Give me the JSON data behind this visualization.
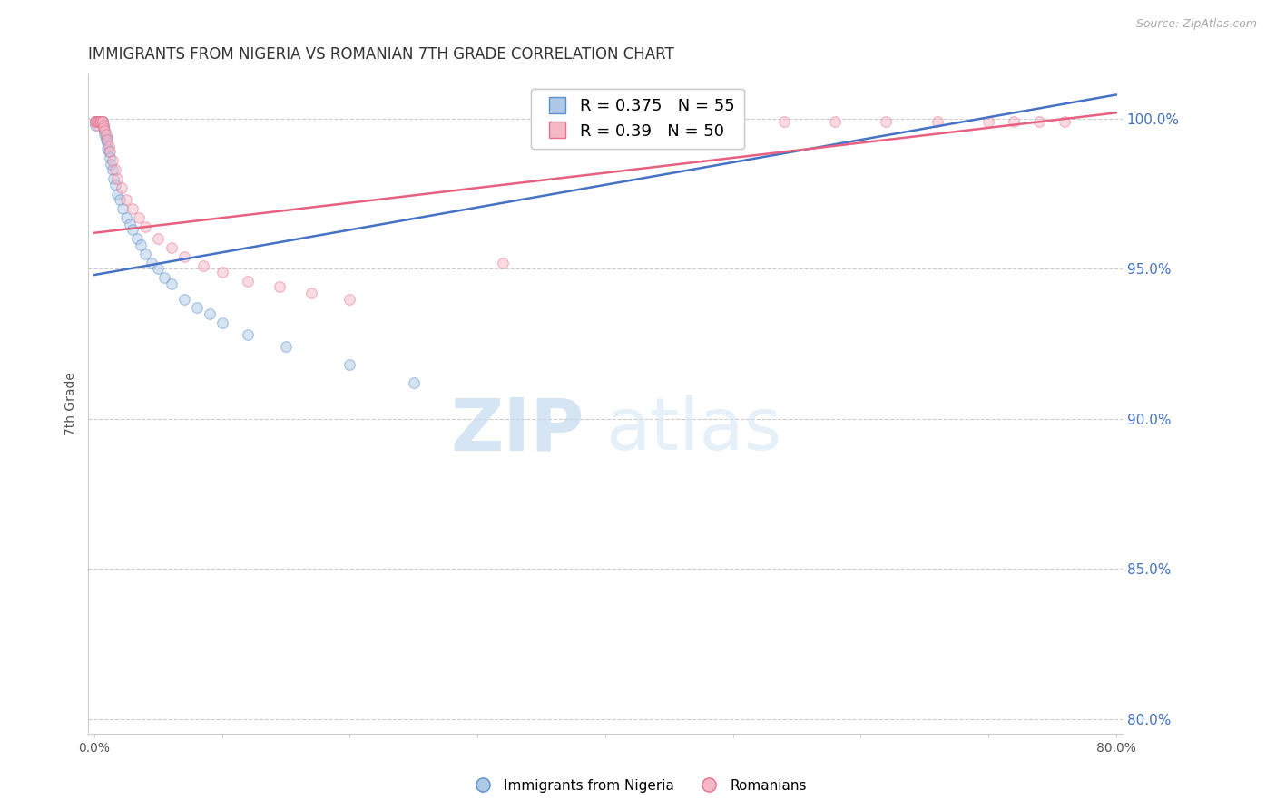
{
  "title": "IMMIGRANTS FROM NIGERIA VS ROMANIAN 7TH GRADE CORRELATION CHART",
  "source": "Source: ZipAtlas.com",
  "ylabel": "7th Grade",
  "xlim": [
    -0.005,
    0.805
  ],
  "ylim": [
    0.795,
    1.015
  ],
  "yticks": [
    0.8,
    0.85,
    0.9,
    0.95,
    1.0
  ],
  "xticks": [
    0.0,
    0.1,
    0.2,
    0.3,
    0.4,
    0.5,
    0.6,
    0.7,
    0.8
  ],
  "nigeria_R": 0.375,
  "nigeria_N": 55,
  "romania_R": 0.39,
  "romania_N": 50,
  "nigeria_color": "#aec8e8",
  "romania_color": "#f5b8c4",
  "nigeria_edge_color": "#5b8fc9",
  "romania_edge_color": "#e87090",
  "nigeria_line_color": "#4472c4",
  "romania_line_color": "#e86080",
  "marker_size": 70,
  "marker_alpha": 0.5,
  "nigeria_x": [
    0.001,
    0.001,
    0.001,
    0.002,
    0.002,
    0.002,
    0.002,
    0.003,
    0.003,
    0.003,
    0.003,
    0.004,
    0.004,
    0.004,
    0.005,
    0.005,
    0.005,
    0.006,
    0.006,
    0.006,
    0.007,
    0.007,
    0.008,
    0.008,
    0.009,
    0.009,
    0.01,
    0.01,
    0.011,
    0.012,
    0.013,
    0.014,
    0.015,
    0.016,
    0.018,
    0.02,
    0.022,
    0.025,
    0.028,
    0.03,
    0.033,
    0.036,
    0.04,
    0.045,
    0.05,
    0.055,
    0.06,
    0.07,
    0.08,
    0.09,
    0.1,
    0.12,
    0.15,
    0.2,
    0.25
  ],
  "nigeria_y": [
    0.999,
    0.999,
    0.998,
    0.999,
    0.999,
    0.999,
    0.999,
    0.999,
    0.999,
    0.999,
    0.999,
    0.999,
    0.999,
    0.999,
    0.999,
    0.999,
    0.999,
    0.999,
    0.999,
    0.999,
    0.998,
    0.997,
    0.996,
    0.995,
    0.994,
    0.993,
    0.992,
    0.99,
    0.989,
    0.987,
    0.985,
    0.983,
    0.98,
    0.978,
    0.975,
    0.973,
    0.97,
    0.967,
    0.965,
    0.963,
    0.96,
    0.958,
    0.955,
    0.952,
    0.95,
    0.947,
    0.945,
    0.94,
    0.937,
    0.935,
    0.932,
    0.928,
    0.924,
    0.918,
    0.912
  ],
  "romania_x": [
    0.001,
    0.001,
    0.002,
    0.002,
    0.003,
    0.003,
    0.003,
    0.004,
    0.004,
    0.005,
    0.005,
    0.006,
    0.006,
    0.007,
    0.007,
    0.008,
    0.009,
    0.01,
    0.011,
    0.012,
    0.014,
    0.016,
    0.018,
    0.021,
    0.025,
    0.03,
    0.035,
    0.04,
    0.05,
    0.06,
    0.07,
    0.085,
    0.1,
    0.12,
    0.145,
    0.17,
    0.2,
    0.32,
    0.38,
    0.42,
    0.46,
    0.5,
    0.54,
    0.58,
    0.62,
    0.66,
    0.7,
    0.72,
    0.74,
    0.76
  ],
  "romania_y": [
    0.999,
    0.999,
    0.999,
    0.998,
    0.999,
    0.999,
    0.999,
    0.999,
    0.999,
    0.999,
    0.999,
    0.999,
    0.999,
    0.998,
    0.997,
    0.996,
    0.995,
    0.993,
    0.991,
    0.989,
    0.986,
    0.983,
    0.98,
    0.977,
    0.973,
    0.97,
    0.967,
    0.964,
    0.96,
    0.957,
    0.954,
    0.951,
    0.949,
    0.946,
    0.944,
    0.942,
    0.94,
    0.952,
    0.999,
    0.999,
    0.999,
    0.999,
    0.999,
    0.999,
    0.999,
    0.999,
    0.999,
    0.999,
    0.999,
    0.999
  ],
  "nigeria_trend_x": [
    0.0,
    0.8
  ],
  "nigeria_trend_y": [
    0.948,
    1.008
  ],
  "romania_trend_x": [
    0.0,
    0.8
  ],
  "romania_trend_y": [
    0.962,
    1.002
  ],
  "watermark_zip": "ZIP",
  "watermark_atlas": "atlas",
  "background_color": "#ffffff",
  "grid_color": "#cccccc",
  "right_label_color": "#4472c4",
  "title_fontsize": 12,
  "axis_label_fontsize": 10,
  "tick_fontsize": 10
}
